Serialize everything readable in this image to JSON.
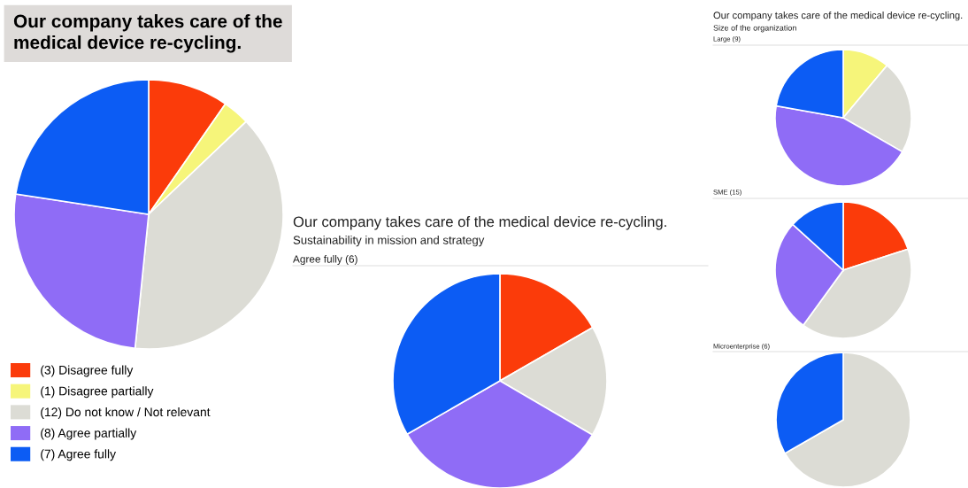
{
  "chart_data": [
    {
      "type": "pie",
      "title": "Our company takes care of the medical device re-cycling.",
      "categories": [
        "(3) Disagree fully",
        "(1) Disagree partially",
        "(12) Do not know / Not relevant",
        "(8) Agree partially",
        "(7) Agree fully"
      ],
      "values": [
        3,
        1,
        12,
        8,
        7
      ],
      "colors": [
        "#fb3b0a",
        "#f6f57a",
        "#dcdcd5",
        "#8f6cf6",
        "#0c5cf4"
      ],
      "legend": "bottom"
    },
    {
      "type": "pie",
      "title": "Our company takes care of the medical device re-cycling.",
      "subtitle": "Sustainability in mission and strategy",
      "annotations": [
        "Agree fully (6)"
      ],
      "categories": [
        null,
        null,
        null,
        null
      ],
      "values": [
        16.7,
        16.7,
        33.3,
        33.3
      ],
      "colors": [
        "#fb3b0a",
        "#dcdcd5",
        "#8f6cf6",
        "#0c5cf4"
      ]
    },
    {
      "type": "pie",
      "title": "Our company takes care of the medical device re-cycling.",
      "subtitle": "Size of the organization",
      "annotations": [
        "Large (9)"
      ],
      "categories": [
        null,
        null,
        null,
        null
      ],
      "values": [
        11.1,
        22.2,
        44.5,
        22.2
      ],
      "colors": [
        "#f6f57a",
        "#dcdcd5",
        "#8f6cf6",
        "#0c5cf4"
      ]
    },
    {
      "type": "pie",
      "annotations": [
        "SME (15)"
      ],
      "categories": [
        null,
        null,
        null,
        null
      ],
      "values": [
        20,
        40,
        26.7,
        13.3
      ],
      "colors": [
        "#fb3b0a",
        "#dcdcd5",
        "#8f6cf6",
        "#0c5cf4"
      ]
    },
    {
      "type": "pie",
      "annotations": [
        "Microenterprise (6)"
      ],
      "categories": [
        null,
        null
      ],
      "values": [
        66.7,
        33.3
      ],
      "colors": [
        "#dcdcd5",
        "#0c5cf4"
      ]
    }
  ]
}
